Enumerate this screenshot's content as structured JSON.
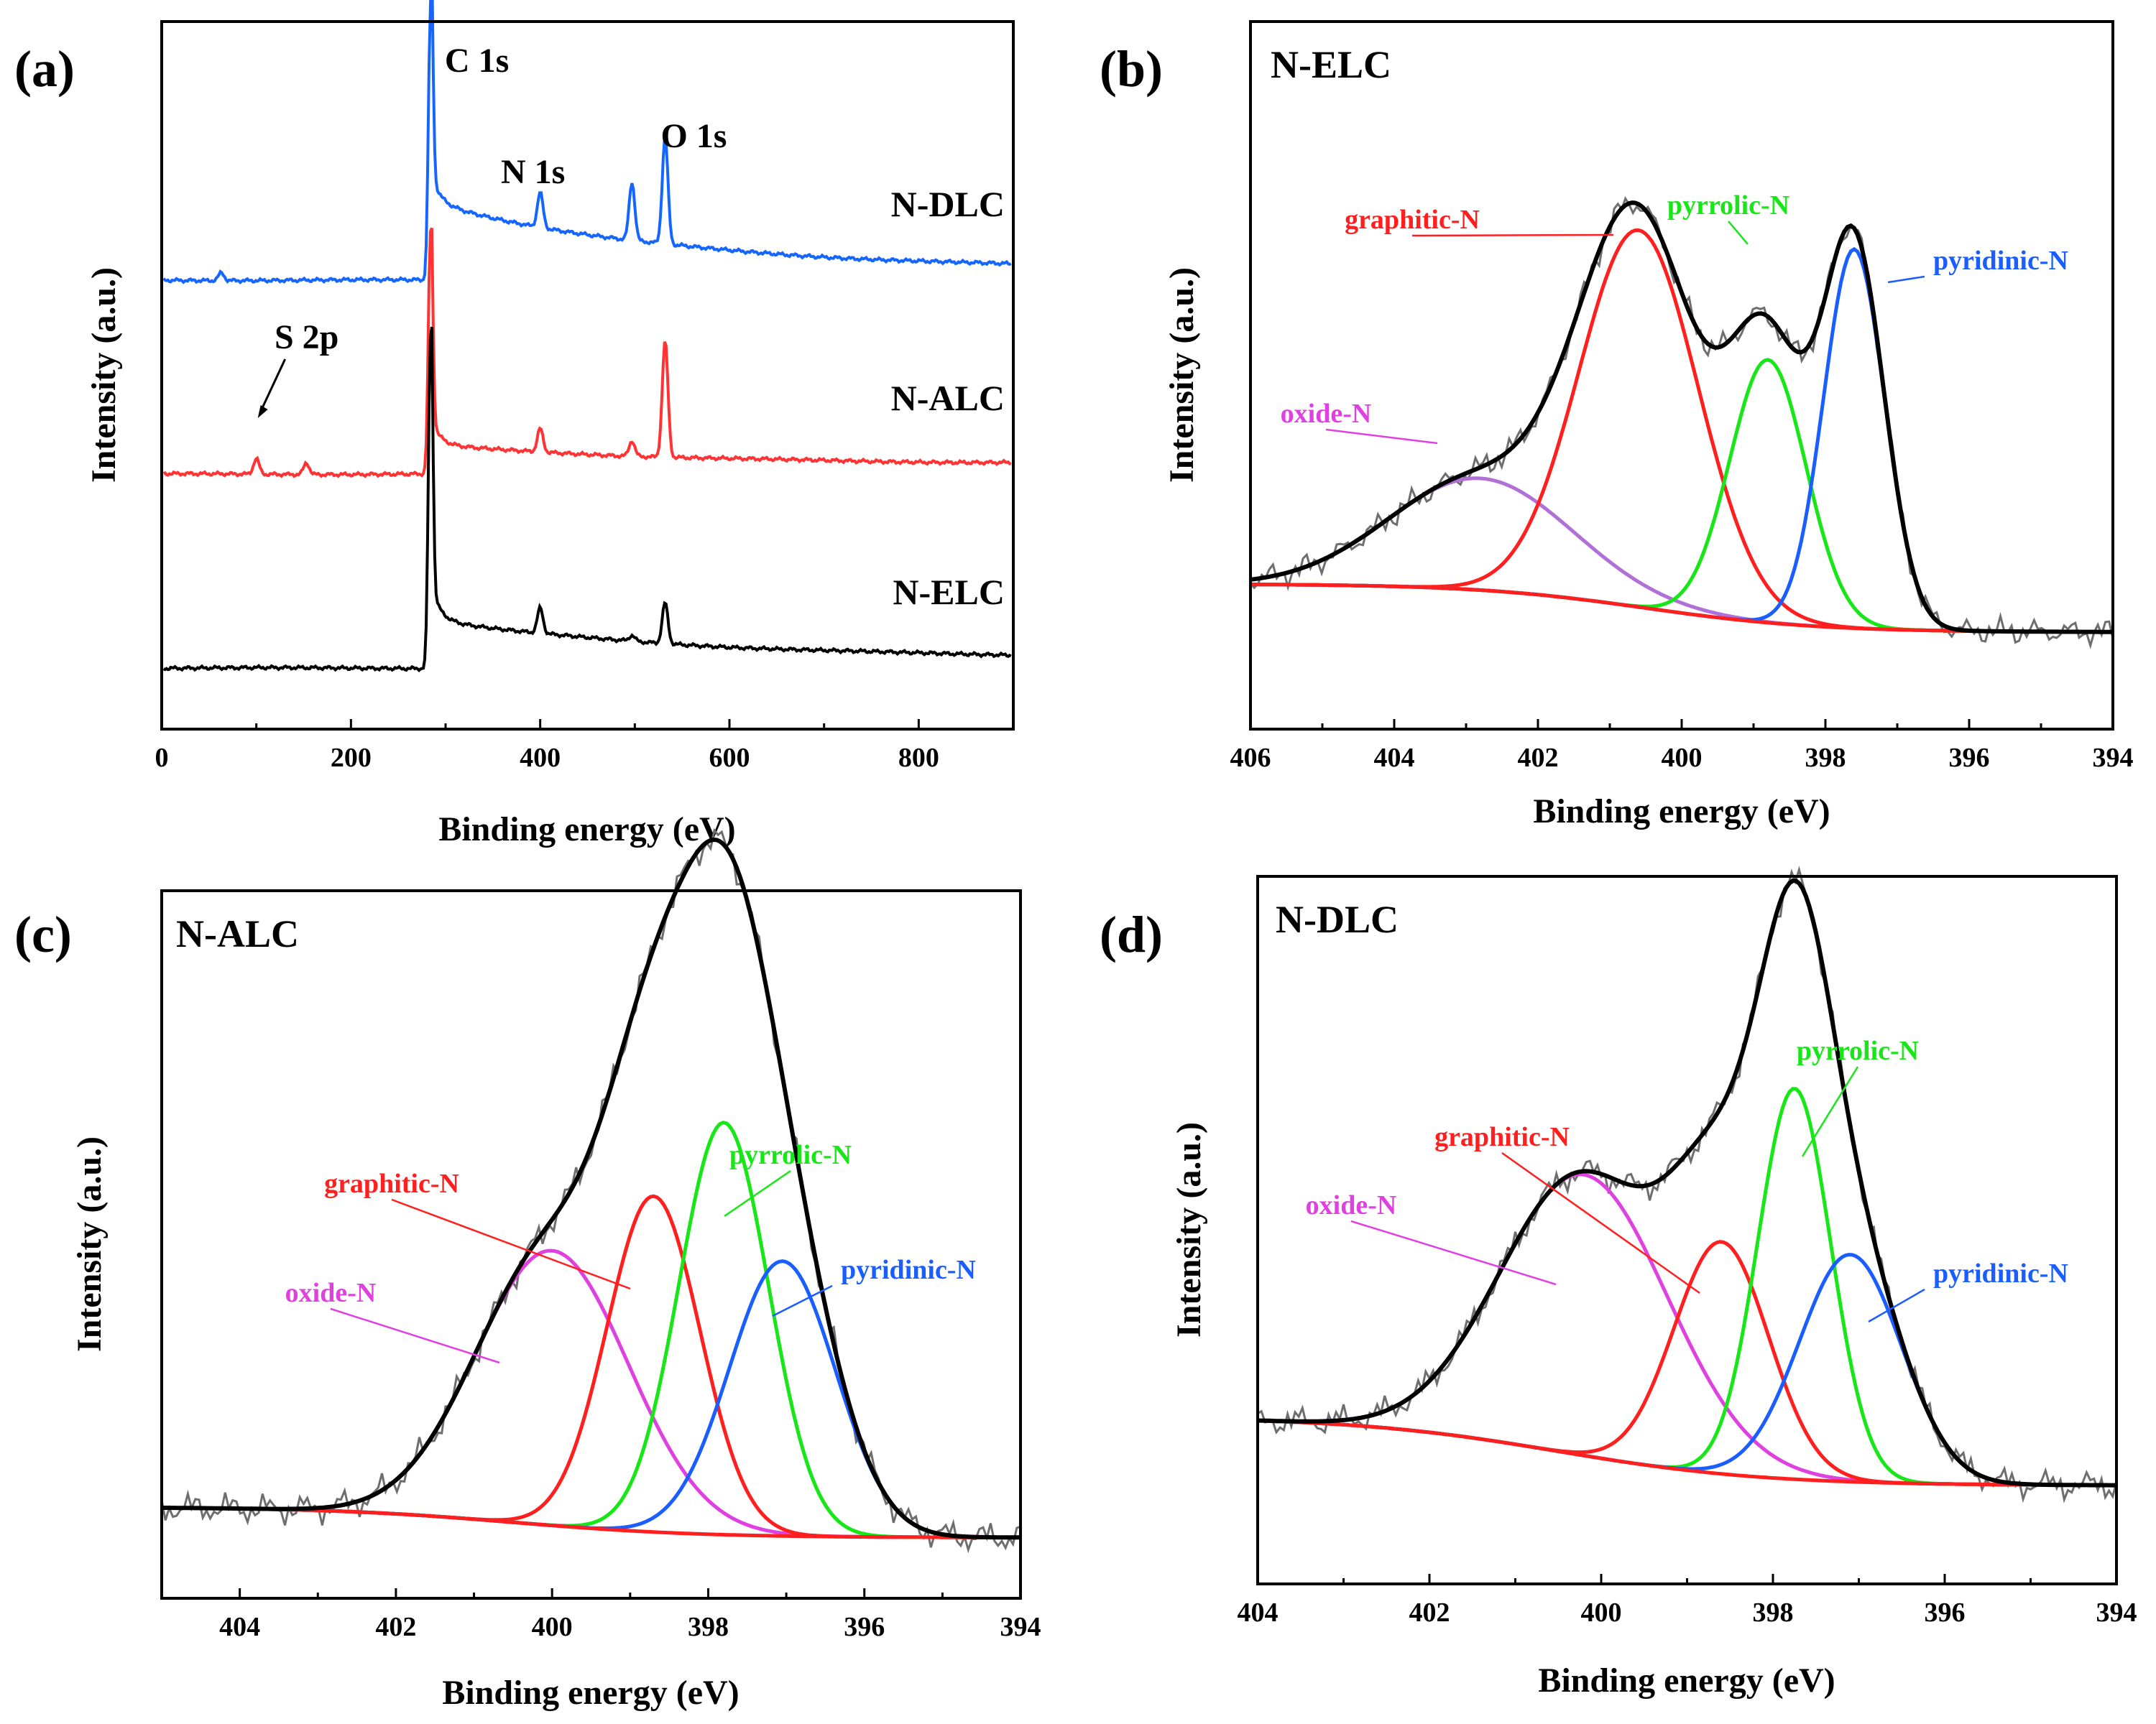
{
  "colors": {
    "N-DLC": "#1565ff",
    "N-ALC": "#ff3333",
    "N-ELC": "#000000",
    "raw": "#6e6e6e",
    "fit": "#000000",
    "baseline": "#ff1f1f",
    "graphitic-N": "#ff1f1f",
    "pyrrolic-N": "#17e617",
    "pyridinic-N": "#1a5eff",
    "oxide-N": "#e040e0",
    "oxide-N-elc": "#b070d8"
  },
  "chart_data": [
    {
      "type": "line",
      "panel": "(a)",
      "title": "",
      "xlabel": "Binding energy (eV)",
      "ylabel": "Intensity (a.u.)",
      "xlim": [
        0,
        900
      ],
      "xticks": [
        "0",
        "200",
        "400",
        "600",
        "800"
      ],
      "peak_labels": [
        {
          "text": "C 1s",
          "x": 284
        },
        {
          "text": "N 1s",
          "x": 400
        },
        {
          "text": "O 1s",
          "x": 532
        },
        {
          "text": "S 2p",
          "x": 100
        }
      ],
      "series": [
        {
          "name": "N-DLC",
          "offset": 2.0,
          "tail": 0.35,
          "peaks": [
            [
              284,
              1.4
            ],
            [
              400,
              0.18
            ],
            [
              497,
              0.3
            ],
            [
              532,
              0.55
            ],
            [
              63,
              0.04
            ]
          ]
        },
        {
          "name": "N-ALC",
          "offset": 1.0,
          "tail": 0.1,
          "peaks": [
            [
              284,
              1.25
            ],
            [
              100,
              0.08
            ],
            [
              153,
              0.06
            ],
            [
              400,
              0.12
            ],
            [
              497,
              0.08
            ],
            [
              532,
              0.6
            ]
          ]
        },
        {
          "name": "N-ELC",
          "offset": 0.0,
          "tail": 0.2,
          "peaks": [
            [
              284,
              1.7
            ],
            [
              400,
              0.13
            ],
            [
              497,
              0.03
            ],
            [
              532,
              0.21
            ]
          ]
        }
      ]
    },
    {
      "type": "line",
      "panel": "(b)",
      "sample": "N-ELC",
      "xlabel": "Binding energy (eV)",
      "ylabel": "Intensity (a.u.)",
      "xlim": [
        406,
        394
      ],
      "xticks": [
        "406",
        "404",
        "402",
        "400",
        "398",
        "396",
        "394"
      ],
      "baseline": {
        "left": 0.22,
        "right": 0.0
      },
      "components": [
        {
          "name": "oxide-N",
          "center": 402.8,
          "height": 0.51,
          "fwhm": 3.0
        },
        {
          "name": "graphitic-N",
          "center": 400.6,
          "height": 1.72,
          "fwhm": 1.95
        },
        {
          "name": "pyrrolic-N",
          "center": 398.8,
          "height": 1.2,
          "fwhm": 1.25
        },
        {
          "name": "pyridinic-N",
          "center": 397.6,
          "height": 1.73,
          "fwhm": 1.0
        }
      ]
    },
    {
      "type": "line",
      "panel": "(c)",
      "sample": "N-ALC",
      "xlabel": "Binding energy (eV)",
      "ylabel": "Intensity (a.u.)",
      "xlim": [
        405,
        394
      ],
      "xticks": [
        "404",
        "402",
        "400",
        "398",
        "396",
        "394"
      ],
      "baseline": {
        "left": 0.0,
        "right": -0.1
      },
      "components": [
        {
          "name": "oxide-N",
          "center": 400.0,
          "height": 0.9,
          "fwhm": 2.3
        },
        {
          "name": "graphitic-N",
          "center": 398.7,
          "height": 1.1,
          "fwhm": 1.4
        },
        {
          "name": "pyrrolic-N",
          "center": 397.8,
          "height": 1.35,
          "fwhm": 1.35
        },
        {
          "name": "pyridinic-N",
          "center": 397.05,
          "height": 0.9,
          "fwhm": 1.6
        }
      ]
    },
    {
      "type": "line",
      "panel": "(d)",
      "sample": "N-DLC",
      "xlabel": "Binding energy (eV)",
      "ylabel": "Intensity (a.u.)",
      "xlim": [
        404,
        394
      ],
      "xticks": [
        "404",
        "402",
        "400",
        "398",
        "396",
        "394"
      ],
      "baseline": {
        "left": 0.28,
        "right": 0.0
      },
      "components": [
        {
          "name": "oxide-N",
          "center": 400.2,
          "height": 1.15,
          "fwhm": 2.3
        },
        {
          "name": "graphitic-N",
          "center": 398.6,
          "height": 0.95,
          "fwhm": 1.3
        },
        {
          "name": "pyrrolic-N",
          "center": 397.75,
          "height": 1.6,
          "fwhm": 1.0
        },
        {
          "name": "pyridinic-N",
          "center": 397.1,
          "height": 0.93,
          "fwhm": 1.4
        }
      ]
    }
  ]
}
